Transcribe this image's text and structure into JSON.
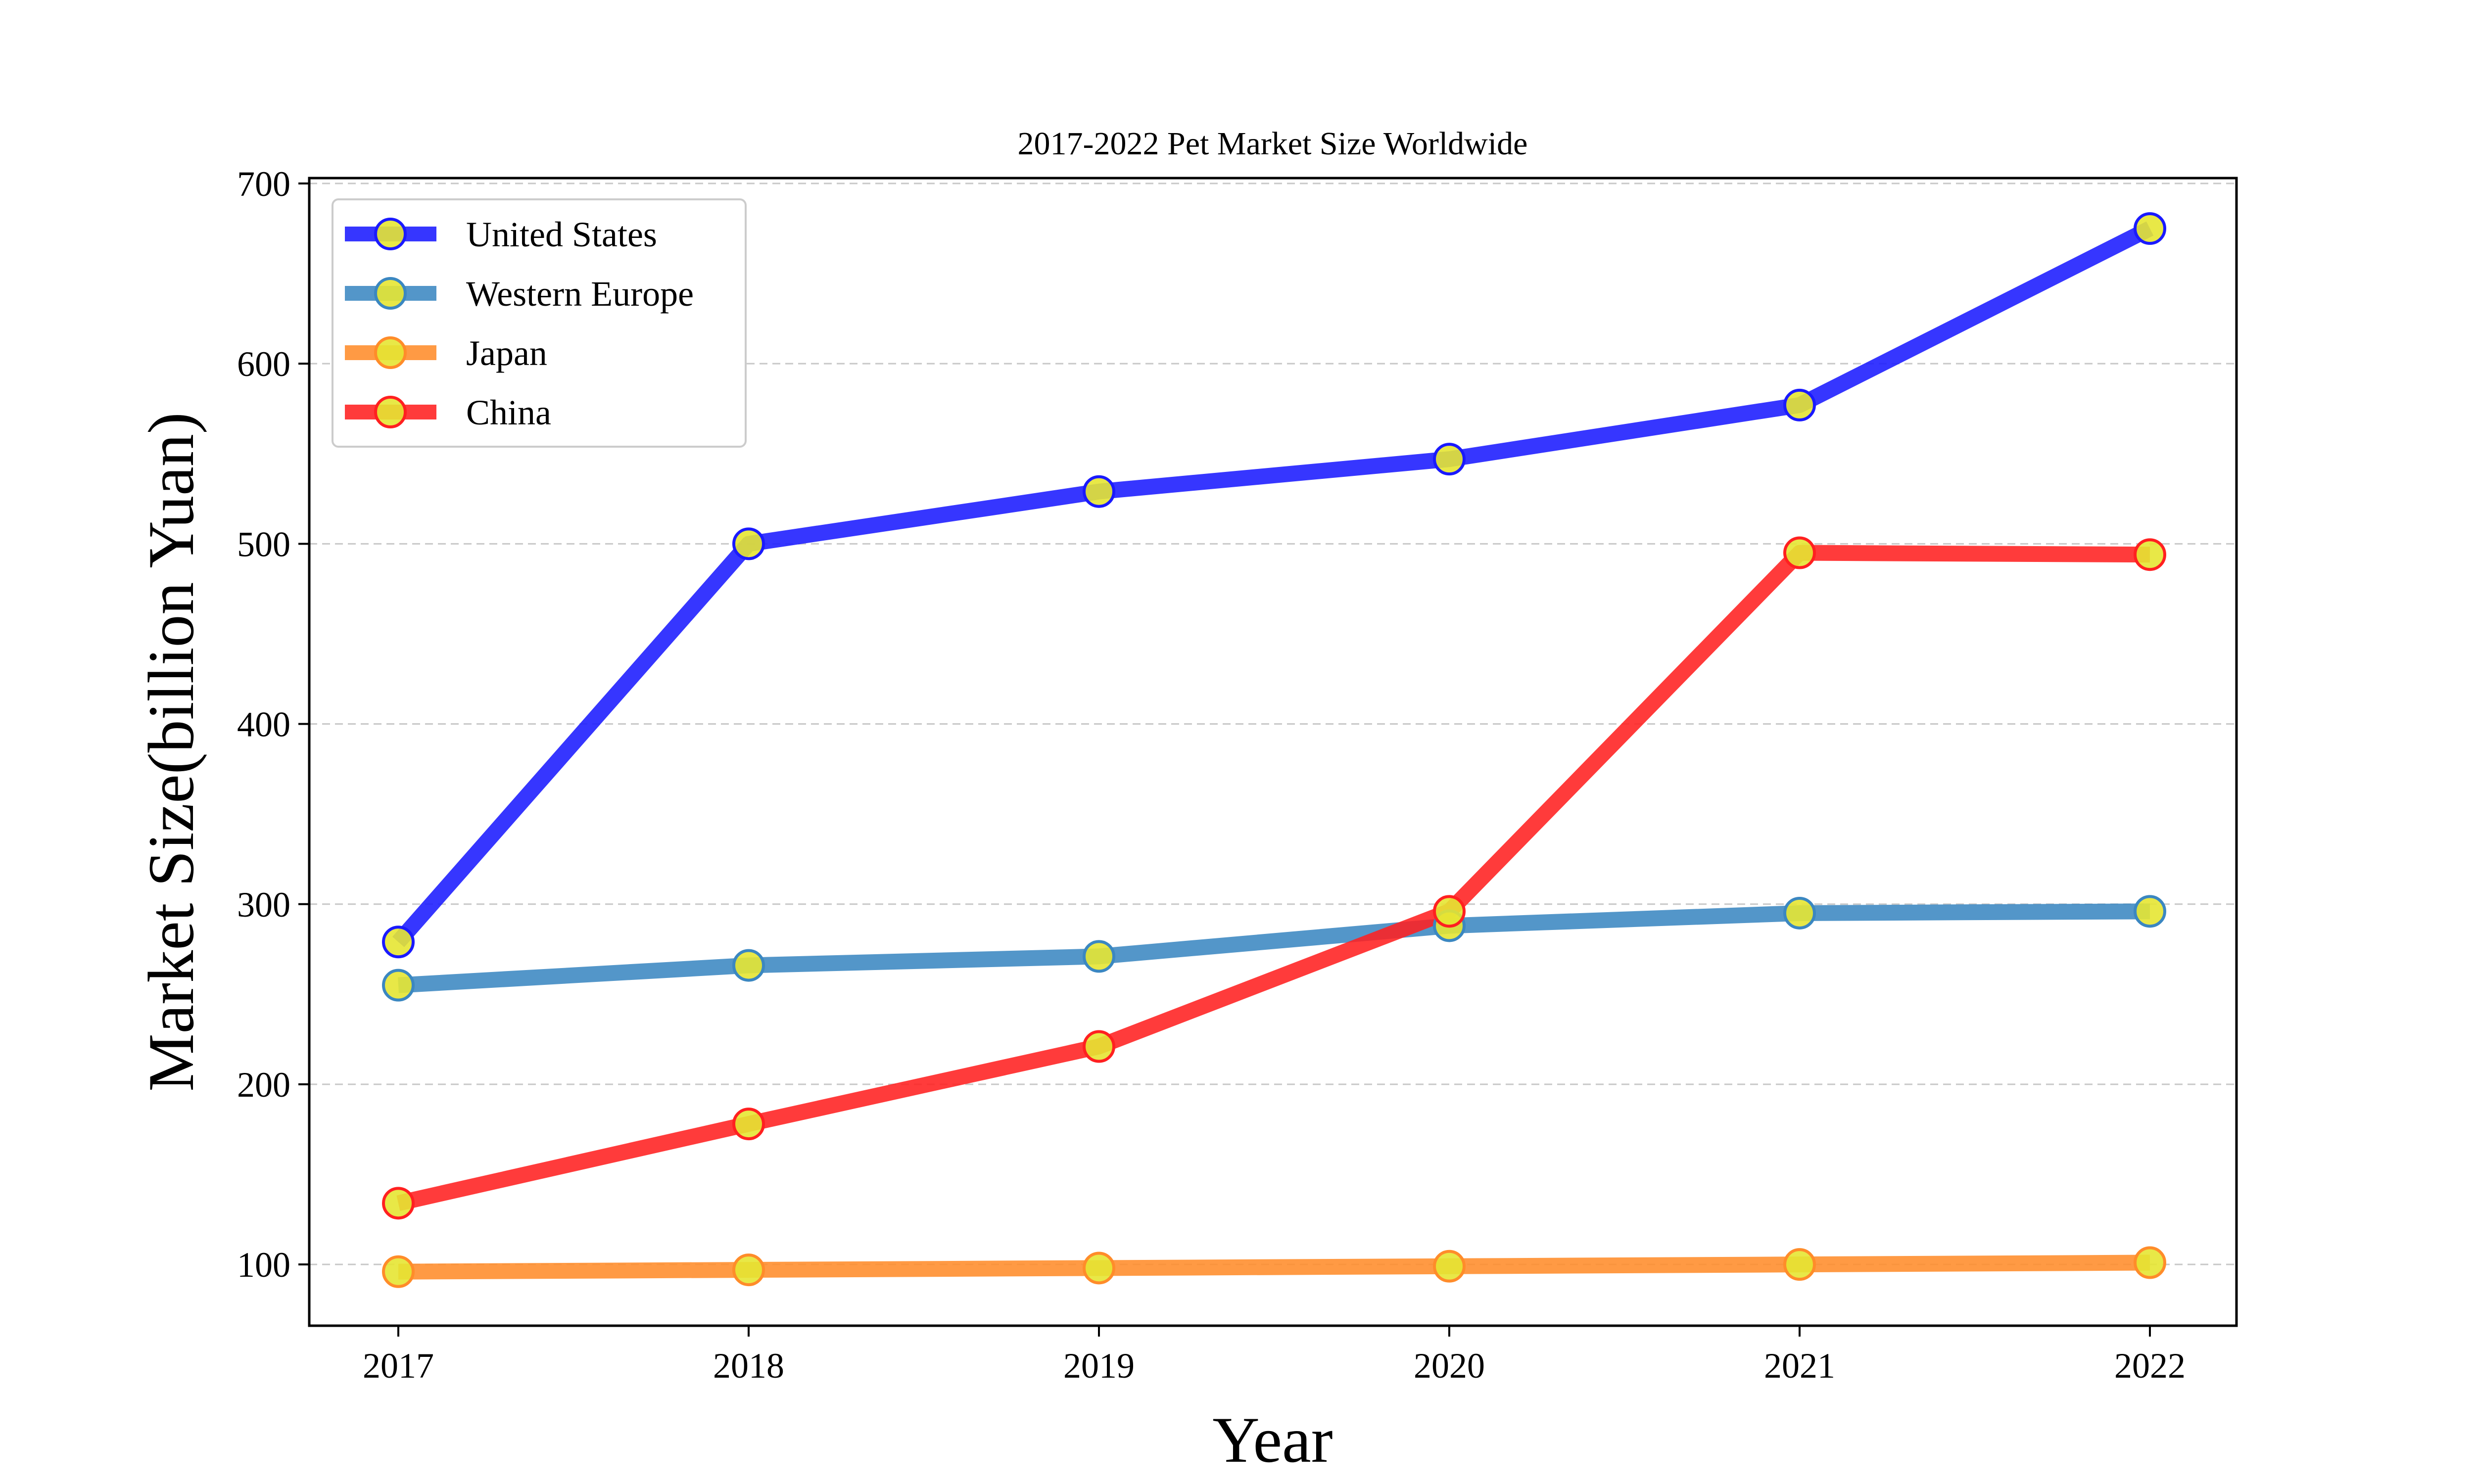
{
  "chart_data": {
    "type": "line",
    "title": "2017-2022 Pet Market Size Worldwide",
    "xlabel": "Year",
    "ylabel": "Market Size(billion Yuan)",
    "x": [
      "2017",
      "2018",
      "2019",
      "2020",
      "2021",
      "2022"
    ],
    "yticks": [
      100,
      200,
      300,
      400,
      500,
      600,
      700
    ],
    "ylim": [
      66,
      703
    ],
    "grid": "horizontal dashed",
    "legend_position": "upper-left",
    "marker_fill": "#e6e633",
    "series": [
      {
        "name": "United States",
        "values": [
          279,
          500,
          529,
          547,
          577,
          675
        ],
        "color": "#1a1aff"
      },
      {
        "name": "Western Europe",
        "values": [
          255,
          266,
          271,
          288,
          295,
          296
        ],
        "color": "#3b87c1"
      },
      {
        "name": "Japan",
        "values": [
          96,
          97,
          98,
          99,
          100,
          101
        ],
        "color": "#ff8c2a"
      },
      {
        "name": "China",
        "values": [
          134,
          178,
          221,
          296,
          495,
          494
        ],
        "color": "#ff2020"
      }
    ]
  }
}
